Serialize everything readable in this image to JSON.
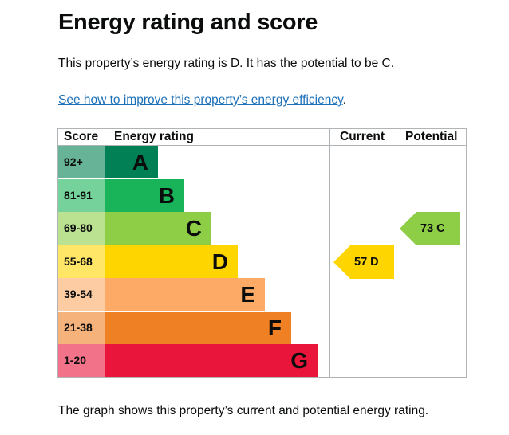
{
  "title": "Energy rating and score",
  "intro": "This property’s energy rating is D. It has the potential to be C.",
  "link_text": "See how to improve this property’s energy efficiency",
  "link_suffix": ".",
  "table": {
    "headers": {
      "score": "Score",
      "rating": "Energy rating",
      "current": "Current",
      "potential": "Potential"
    },
    "bands": [
      {
        "score": "92+",
        "letter": "A",
        "bar_color": "#008054",
        "score_color": "#66b398"
      },
      {
        "score": "81-91",
        "letter": "B",
        "bar_color": "#19b459",
        "score_color": "#75d29b"
      },
      {
        "score": "69-80",
        "letter": "C",
        "bar_color": "#8dce46",
        "score_color": "#bbe290"
      },
      {
        "score": "55-68",
        "letter": "D",
        "bar_color": "#ffd500",
        "score_color": "#ffe666"
      },
      {
        "score": "39-54",
        "letter": "E",
        "bar_color": "#fcaa65",
        "score_color": "#fdcca3"
      },
      {
        "score": "21-38",
        "letter": "F",
        "bar_color": "#ef8023",
        "score_color": "#f5b37b"
      },
      {
        "score": "1-20",
        "letter": "G",
        "bar_color": "#e9153b",
        "score_color": "#f27389"
      }
    ],
    "current": {
      "label": "57 D",
      "band": "D",
      "color": "#ffd500"
    },
    "potential": {
      "label": "73 C",
      "band": "C",
      "color": "#8dce46"
    }
  },
  "footer": "The graph shows this property’s current and potential energy rating."
}
